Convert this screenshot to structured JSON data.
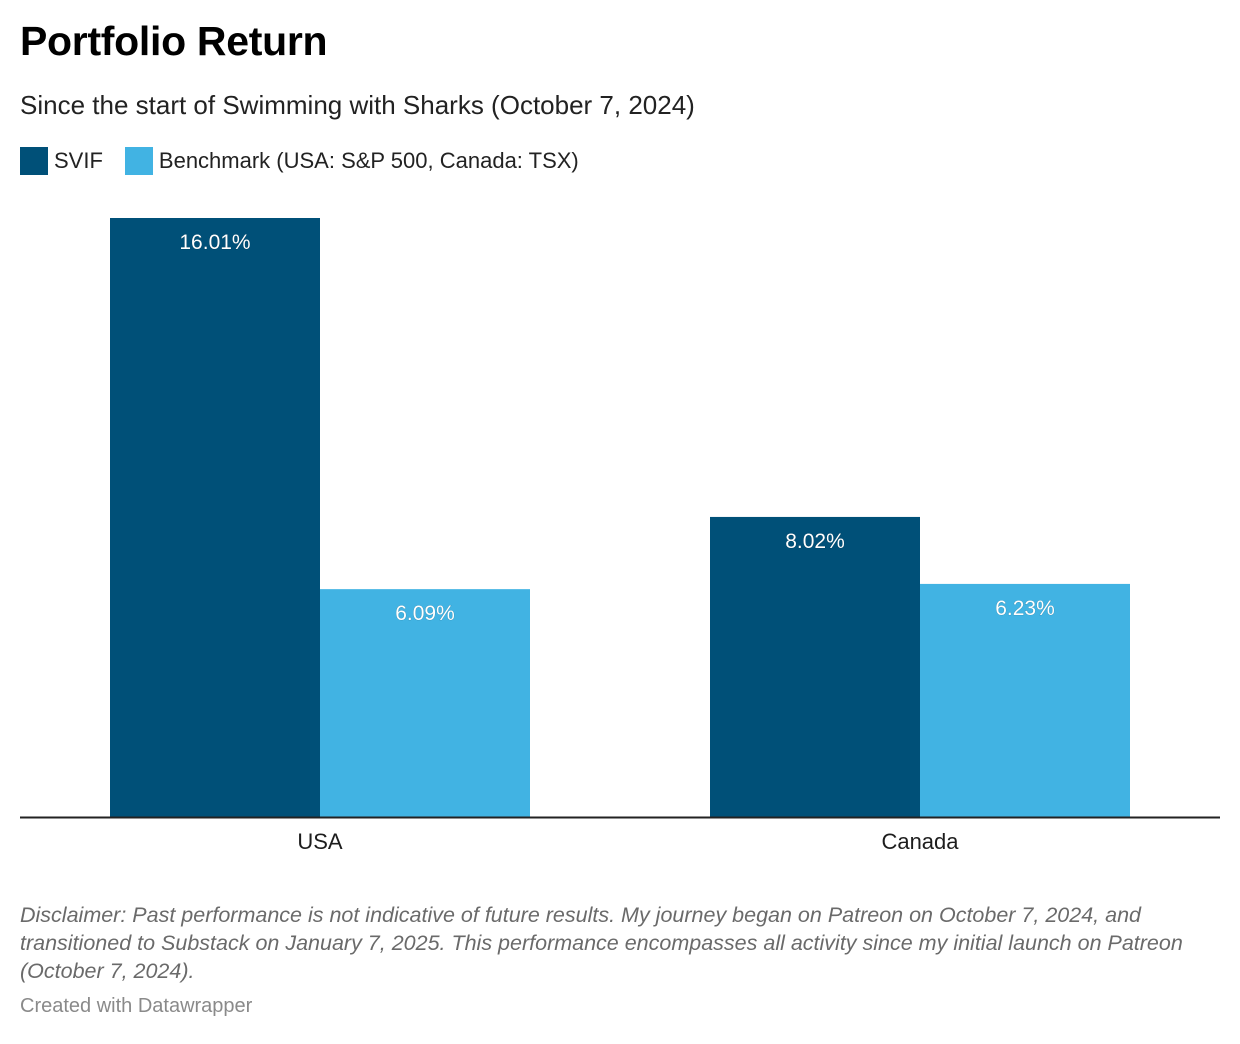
{
  "header": {
    "title": "Portfolio Return",
    "subtitle": "Since the start of Swimming with Sharks (October 7, 2024)"
  },
  "chart_data": {
    "type": "bar",
    "categories": [
      "USA",
      "Canada"
    ],
    "series": [
      {
        "name": "SVIF",
        "color": "#005078",
        "values": [
          16.01,
          8.02
        ],
        "labels": [
          "16.01%",
          "8.02%"
        ]
      },
      {
        "name": "Benchmark (USA: S&P 500, Canada: TSX)",
        "color": "#41b3e3",
        "values": [
          6.09,
          6.23
        ],
        "labels": [
          "6.09%",
          "6.23%"
        ]
      }
    ],
    "ylim": [
      0,
      16.01
    ],
    "title": "Portfolio Return",
    "xlabel": "",
    "ylabel": "",
    "grid": false,
    "legend": "top-left"
  },
  "footer": {
    "disclaimer": "Disclaimer: Past performance is not indicative of future results. My journey began on Patreon on October 7, 2024, and transitioned to Substack on January 7, 2025. This performance encompasses all activity since my initial launch on Patreon (October 7, 2024).",
    "credit": "Created with Datawrapper"
  }
}
